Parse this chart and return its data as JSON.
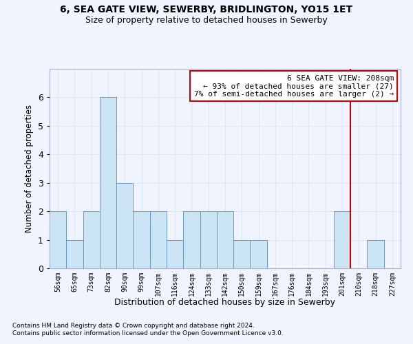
{
  "title1": "6, SEA GATE VIEW, SEWERBY, BRIDLINGTON, YO15 1ET",
  "title2": "Size of property relative to detached houses in Sewerby",
  "xlabel": "Distribution of detached houses by size in Sewerby",
  "ylabel": "Number of detached properties",
  "bins": [
    "56sqm",
    "65sqm",
    "73sqm",
    "82sqm",
    "90sqm",
    "99sqm",
    "107sqm",
    "116sqm",
    "124sqm",
    "133sqm",
    "142sqm",
    "150sqm",
    "159sqm",
    "167sqm",
    "176sqm",
    "184sqm",
    "193sqm",
    "201sqm",
    "210sqm",
    "218sqm",
    "227sqm"
  ],
  "values": [
    2,
    1,
    2,
    6,
    3,
    2,
    2,
    1,
    2,
    2,
    2,
    1,
    1,
    0,
    0,
    0,
    0,
    2,
    0,
    1,
    0
  ],
  "bar_color": "#cce5f5",
  "bar_edge_color": "#6699cc",
  "grid_color": "#dde8f0",
  "vline_x_index": 17.5,
  "vline_color": "#cc0000",
  "annotation_text": "6 SEA GATE VIEW: 208sqm\n← 93% of detached houses are smaller (27)\n7% of semi-detached houses are larger (2) →",
  "annotation_box_color": "#cc0000",
  "ylim": [
    0,
    7
  ],
  "yticks": [
    0,
    1,
    2,
    3,
    4,
    5,
    6,
    7
  ],
  "footnote1": "Contains HM Land Registry data © Crown copyright and database right 2024.",
  "footnote2": "Contains public sector information licensed under the Open Government Licence v3.0.",
  "background_color": "#f0f4ff"
}
